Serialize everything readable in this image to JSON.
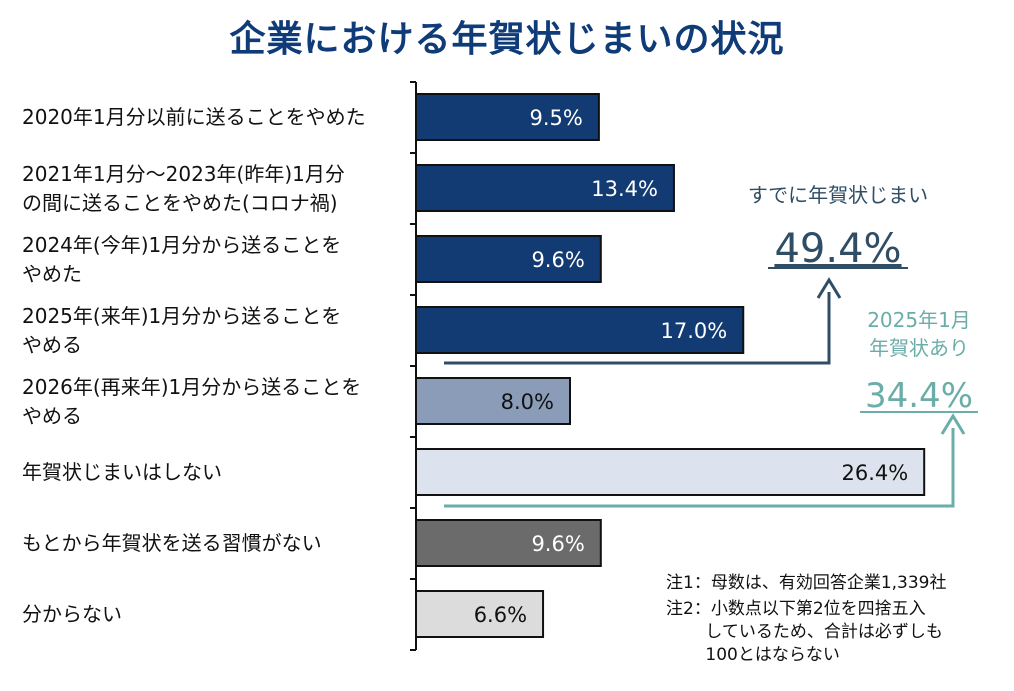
{
  "chart_data": {
    "type": "bar",
    "orientation": "horizontal",
    "title": "企業における年賀状じまいの状況",
    "unit": "%",
    "categories": [
      [
        "2020年1月分以前に送ることをやめた"
      ],
      [
        "2021年1月分～2023年(昨年)1月分",
        "の間に送ることをやめた(コロナ禍)"
      ],
      [
        "2024年(今年)1月分から送ることを",
        "やめた"
      ],
      [
        "2025年(来年)1月分から送ることを",
        "やめる"
      ],
      [
        "2026年(再来年)1月分から送ることを",
        "やめる"
      ],
      [
        "年賀状じまいはしない"
      ],
      [
        "もとから年賀状を送る習慣がない"
      ],
      [
        "分からない"
      ]
    ],
    "values": [
      9.5,
      13.4,
      9.6,
      17.0,
      8.0,
      26.4,
      9.6,
      6.6
    ],
    "value_labels": [
      "9.5%",
      "13.4%",
      "9.6%",
      "17.0%",
      "8.0%",
      "26.4%",
      "9.6%",
      "6.6%"
    ],
    "bar_colors": [
      "#123a73",
      "#123a73",
      "#123a73",
      "#123a73",
      "#8a9cb8",
      "#dde3ee",
      "#6b6b6b",
      "#dcdcdc"
    ],
    "label_colors": [
      "#ffffff",
      "#ffffff",
      "#ffffff",
      "#ffffff",
      "#111111",
      "#111111",
      "#ffffff",
      "#111111"
    ],
    "xlim": [
      0,
      30
    ],
    "grid": false,
    "annotations": {
      "already": {
        "label": "すでに年賀状じまい",
        "value": "49.4%",
        "color": "#2f4e66"
      },
      "next": {
        "label_lines": [
          "2025年1月",
          "年賀状あり"
        ],
        "value": "34.4%",
        "color": "#6bada8"
      }
    }
  },
  "notes": {
    "note1": "注1：母数は、有効回答企業1,339社",
    "note2_lines": [
      "注2：小数点以下第2位を四捨五入",
      "　　 しているため、合計は必ずしも",
      "　　 100とはならない"
    ]
  },
  "colors": {
    "title": "#0f3b78",
    "axis": "#111111"
  }
}
